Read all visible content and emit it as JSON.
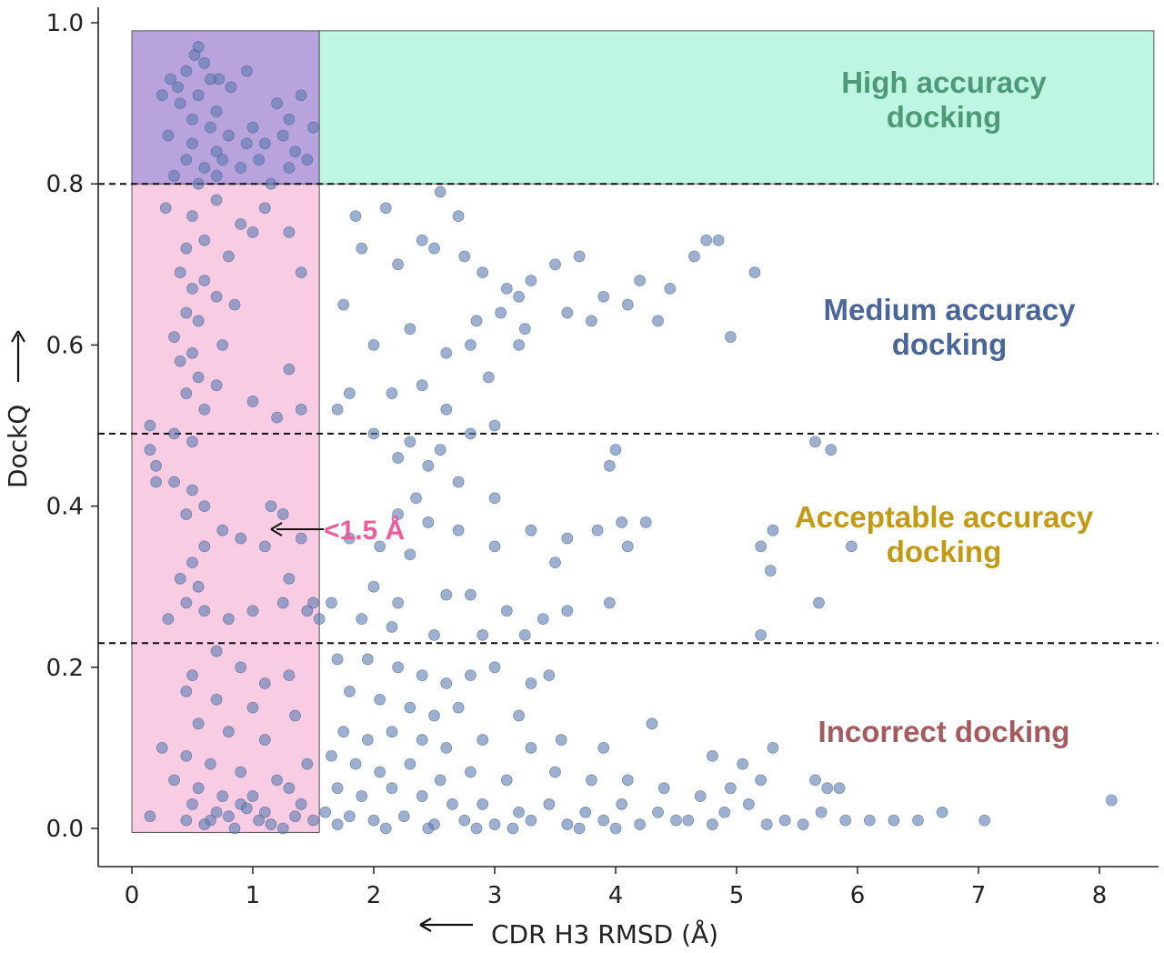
{
  "chart_data": {
    "type": "scatter",
    "title": "",
    "xlabel": "CDR H3 RMSD (Å)",
    "ylabel": "DockQ",
    "xlim": [
      -0.28,
      8.5
    ],
    "ylim": [
      -0.045,
      1.02
    ],
    "x_ticks": [
      "0",
      "1",
      "2",
      "3",
      "4",
      "5",
      "6",
      "7",
      "8"
    ],
    "y_ticks": [
      "0.0",
      "0.2",
      "0.4",
      "0.6",
      "0.8",
      "1.0"
    ],
    "grid": false,
    "thresholds": [
      0.23,
      0.49,
      0.8
    ],
    "regions": [
      {
        "name": "rmsd-lt-1.5",
        "x": [
          0,
          1.55
        ],
        "y": [
          -0.005,
          0.8
        ],
        "color": "#f8cde4"
      },
      {
        "name": "overlap",
        "x": [
          0,
          1.55
        ],
        "y": [
          0.8,
          0.99
        ],
        "color": "#b9a3dd"
      },
      {
        "name": "high-accuracy",
        "x": [
          1.55,
          8.45
        ],
        "y": [
          0.8,
          0.99
        ],
        "color": "#bdf7e4"
      }
    ],
    "annotations": [
      {
        "text": "High accuracy",
        "text2": "docking",
        "color": "#4e9a78"
      },
      {
        "text": "Medium accuracy",
        "text2": "docking",
        "color": "#4a6699"
      },
      {
        "text": "Acceptable accuracy",
        "text2": "docking",
        "color": "#c39a14"
      },
      {
        "text": "Incorrect docking",
        "text2": "",
        "color": "#a55a60"
      },
      {
        "text": "<1.5 Å",
        "text2": "",
        "color": "#ec5c9a"
      }
    ],
    "point_color": "#5b7bb0",
    "points": [
      [
        0.32,
        0.93
      ],
      [
        0.38,
        0.92
      ],
      [
        0.45,
        0.94
      ],
      [
        0.52,
        0.96
      ],
      [
        0.55,
        0.97
      ],
      [
        0.6,
        0.95
      ],
      [
        0.72,
        0.93
      ],
      [
        0.82,
        0.92
      ],
      [
        0.25,
        0.91
      ],
      [
        0.4,
        0.9
      ],
      [
        0.55,
        0.91
      ],
      [
        0.7,
        0.89
      ],
      [
        0.95,
        0.94
      ],
      [
        1.2,
        0.9
      ],
      [
        1.4,
        0.91
      ],
      [
        0.3,
        0.86
      ],
      [
        0.5,
        0.85
      ],
      [
        0.65,
        0.87
      ],
      [
        0.8,
        0.86
      ],
      [
        1.0,
        0.87
      ],
      [
        1.1,
        0.85
      ],
      [
        1.25,
        0.86
      ],
      [
        1.35,
        0.84
      ],
      [
        1.5,
        0.87
      ],
      [
        0.45,
        0.83
      ],
      [
        0.6,
        0.82
      ],
      [
        0.75,
        0.83
      ],
      [
        0.9,
        0.82
      ],
      [
        1.05,
        0.83
      ],
      [
        1.3,
        0.82
      ],
      [
        1.45,
        0.83
      ],
      [
        0.35,
        0.81
      ],
      [
        0.55,
        0.8
      ],
      [
        0.7,
        0.81
      ],
      [
        1.15,
        0.8
      ],
      [
        0.65,
        0.93
      ],
      [
        0.5,
        0.88
      ],
      [
        1.3,
        0.88
      ],
      [
        0.95,
        0.85
      ],
      [
        0.7,
        0.84
      ],
      [
        0.28,
        0.77
      ],
      [
        0.5,
        0.76
      ],
      [
        0.7,
        0.78
      ],
      [
        0.9,
        0.75
      ],
      [
        1.1,
        0.77
      ],
      [
        1.3,
        0.74
      ],
      [
        0.45,
        0.72
      ],
      [
        0.6,
        0.73
      ],
      [
        0.8,
        0.71
      ],
      [
        1.0,
        0.74
      ],
      [
        0.4,
        0.69
      ],
      [
        0.5,
        0.67
      ],
      [
        0.6,
        0.68
      ],
      [
        0.7,
        0.66
      ],
      [
        0.45,
        0.64
      ],
      [
        0.55,
        0.63
      ],
      [
        0.35,
        0.61
      ],
      [
        0.85,
        0.65
      ],
      [
        1.4,
        0.69
      ],
      [
        0.75,
        0.6
      ],
      [
        0.4,
        0.58
      ],
      [
        0.5,
        0.59
      ],
      [
        0.55,
        0.56
      ],
      [
        0.45,
        0.54
      ],
      [
        0.7,
        0.55
      ],
      [
        1.0,
        0.53
      ],
      [
        1.3,
        0.57
      ],
      [
        0.6,
        0.52
      ],
      [
        1.2,
        0.51
      ],
      [
        1.4,
        0.52
      ],
      [
        0.15,
        0.5
      ],
      [
        0.15,
        0.47
      ],
      [
        0.2,
        0.45
      ],
      [
        0.35,
        0.49
      ],
      [
        0.5,
        0.48
      ],
      [
        0.2,
        0.43
      ],
      [
        0.35,
        0.43
      ],
      [
        0.5,
        0.42
      ],
      [
        0.6,
        0.4
      ],
      [
        0.45,
        0.39
      ],
      [
        1.15,
        0.4
      ],
      [
        1.25,
        0.39
      ],
      [
        0.75,
        0.37
      ],
      [
        0.9,
        0.36
      ],
      [
        1.1,
        0.35
      ],
      [
        1.4,
        0.36
      ],
      [
        0.6,
        0.35
      ],
      [
        0.5,
        0.33
      ],
      [
        0.4,
        0.31
      ],
      [
        0.55,
        0.3
      ],
      [
        1.3,
        0.31
      ],
      [
        0.45,
        0.28
      ],
      [
        0.6,
        0.27
      ],
      [
        0.8,
        0.26
      ],
      [
        1.0,
        0.27
      ],
      [
        1.25,
        0.28
      ],
      [
        1.45,
        0.27
      ],
      [
        0.3,
        0.26
      ],
      [
        1.5,
        0.28
      ],
      [
        1.55,
        0.26
      ],
      [
        0.7,
        0.22
      ],
      [
        0.5,
        0.19
      ],
      [
        0.9,
        0.2
      ],
      [
        1.1,
        0.18
      ],
      [
        1.3,
        0.19
      ],
      [
        0.45,
        0.17
      ],
      [
        0.7,
        0.16
      ],
      [
        1.0,
        0.15
      ],
      [
        1.35,
        0.14
      ],
      [
        0.55,
        0.13
      ],
      [
        0.8,
        0.12
      ],
      [
        1.1,
        0.11
      ],
      [
        0.25,
        0.1
      ],
      [
        0.45,
        0.09
      ],
      [
        0.65,
        0.08
      ],
      [
        0.9,
        0.07
      ],
      [
        1.2,
        0.06
      ],
      [
        1.45,
        0.08
      ],
      [
        0.35,
        0.06
      ],
      [
        0.55,
        0.05
      ],
      [
        0.75,
        0.04
      ],
      [
        1.0,
        0.04
      ],
      [
        1.3,
        0.05
      ],
      [
        0.5,
        0.03
      ],
      [
        0.7,
        0.02
      ],
      [
        0.9,
        0.03
      ],
      [
        1.1,
        0.02
      ],
      [
        1.4,
        0.03
      ],
      [
        0.45,
        0.01
      ],
      [
        0.65,
        0.01
      ],
      [
        0.85,
        0.0
      ],
      [
        1.05,
        0.01
      ],
      [
        1.25,
        0.0
      ],
      [
        1.5,
        0.01
      ],
      [
        0.6,
        0.005
      ],
      [
        1.15,
        0.005
      ],
      [
        0.8,
        0.015
      ],
      [
        1.35,
        0.015
      ],
      [
        0.15,
        0.015
      ],
      [
        0.95,
        0.025
      ],
      [
        1.85,
        0.76
      ],
      [
        2.1,
        0.77
      ],
      [
        2.4,
        0.73
      ],
      [
        2.55,
        0.79
      ],
      [
        2.7,
        0.76
      ],
      [
        1.9,
        0.72
      ],
      [
        2.2,
        0.7
      ],
      [
        2.5,
        0.72
      ],
      [
        2.75,
        0.71
      ],
      [
        2.9,
        0.69
      ],
      [
        3.1,
        0.67
      ],
      [
        3.3,
        0.68
      ],
      [
        3.5,
        0.7
      ],
      [
        3.7,
        0.71
      ],
      [
        3.9,
        0.66
      ],
      [
        4.2,
        0.68
      ],
      [
        4.45,
        0.67
      ],
      [
        4.65,
        0.71
      ],
      [
        4.75,
        0.73
      ],
      [
        4.85,
        0.73
      ],
      [
        5.15,
        0.69
      ],
      [
        4.95,
        0.61
      ],
      [
        2.85,
        0.63
      ],
      [
        3.05,
        0.64
      ],
      [
        3.25,
        0.62
      ],
      [
        3.6,
        0.64
      ],
      [
        3.8,
        0.63
      ],
      [
        4.1,
        0.65
      ],
      [
        4.35,
        0.63
      ],
      [
        1.75,
        0.65
      ],
      [
        2.0,
        0.6
      ],
      [
        2.3,
        0.62
      ],
      [
        2.6,
        0.59
      ],
      [
        2.8,
        0.6
      ],
      [
        3.2,
        0.6
      ],
      [
        1.8,
        0.54
      ],
      [
        2.15,
        0.54
      ],
      [
        2.4,
        0.55
      ],
      [
        2.6,
        0.52
      ],
      [
        1.7,
        0.52
      ],
      [
        2.0,
        0.49
      ],
      [
        2.3,
        0.48
      ],
      [
        2.55,
        0.47
      ],
      [
        2.8,
        0.49
      ],
      [
        3.0,
        0.5
      ],
      [
        2.2,
        0.46
      ],
      [
        2.45,
        0.45
      ],
      [
        2.7,
        0.43
      ],
      [
        3.0,
        0.41
      ],
      [
        2.35,
        0.41
      ],
      [
        3.3,
        0.37
      ],
      [
        3.6,
        0.36
      ],
      [
        3.85,
        0.37
      ],
      [
        4.05,
        0.38
      ],
      [
        4.25,
        0.38
      ],
      [
        2.2,
        0.39
      ],
      [
        2.45,
        0.38
      ],
      [
        2.7,
        0.37
      ],
      [
        3.95,
        0.45
      ],
      [
        4.0,
        0.47
      ],
      [
        1.8,
        0.36
      ],
      [
        2.05,
        0.35
      ],
      [
        2.3,
        0.34
      ],
      [
        3.0,
        0.35
      ],
      [
        3.5,
        0.33
      ],
      [
        4.1,
        0.35
      ],
      [
        2.0,
        0.3
      ],
      [
        2.2,
        0.28
      ],
      [
        2.6,
        0.29
      ],
      [
        2.8,
        0.29
      ],
      [
        3.1,
        0.27
      ],
      [
        3.4,
        0.26
      ],
      [
        3.6,
        0.27
      ],
      [
        3.95,
        0.28
      ],
      [
        1.65,
        0.28
      ],
      [
        1.9,
        0.26
      ],
      [
        2.15,
        0.25
      ],
      [
        2.5,
        0.24
      ],
      [
        2.9,
        0.24
      ],
      [
        3.25,
        0.24
      ],
      [
        1.7,
        0.21
      ],
      [
        1.95,
        0.21
      ],
      [
        2.2,
        0.2
      ],
      [
        2.4,
        0.19
      ],
      [
        2.6,
        0.18
      ],
      [
        2.8,
        0.19
      ],
      [
        3.0,
        0.2
      ],
      [
        3.3,
        0.18
      ],
      [
        3.45,
        0.19
      ],
      [
        1.8,
        0.17
      ],
      [
        2.05,
        0.16
      ],
      [
        2.3,
        0.15
      ],
      [
        2.5,
        0.14
      ],
      [
        2.7,
        0.15
      ],
      [
        3.2,
        0.14
      ],
      [
        1.75,
        0.12
      ],
      [
        1.95,
        0.11
      ],
      [
        2.15,
        0.12
      ],
      [
        2.4,
        0.11
      ],
      [
        2.6,
        0.1
      ],
      [
        2.9,
        0.11
      ],
      [
        3.3,
        0.1
      ],
      [
        3.55,
        0.11
      ],
      [
        3.9,
        0.1
      ],
      [
        4.3,
        0.13
      ],
      [
        4.8,
        0.09
      ],
      [
        5.05,
        0.08
      ],
      [
        5.3,
        0.1
      ],
      [
        1.65,
        0.09
      ],
      [
        1.85,
        0.08
      ],
      [
        2.05,
        0.07
      ],
      [
        2.3,
        0.08
      ],
      [
        2.55,
        0.06
      ],
      [
        2.8,
        0.07
      ],
      [
        3.1,
        0.06
      ],
      [
        3.5,
        0.07
      ],
      [
        3.8,
        0.06
      ],
      [
        4.1,
        0.06
      ],
      [
        4.4,
        0.05
      ],
      [
        4.7,
        0.04
      ],
      [
        4.95,
        0.05
      ],
      [
        5.2,
        0.06
      ],
      [
        5.65,
        0.06
      ],
      [
        5.75,
        0.05
      ],
      [
        5.85,
        0.05
      ],
      [
        1.7,
        0.05
      ],
      [
        1.9,
        0.04
      ],
      [
        2.15,
        0.05
      ],
      [
        2.4,
        0.04
      ],
      [
        2.65,
        0.03
      ],
      [
        2.9,
        0.03
      ],
      [
        3.2,
        0.02
      ],
      [
        3.45,
        0.03
      ],
      [
        3.75,
        0.02
      ],
      [
        4.05,
        0.03
      ],
      [
        4.35,
        0.02
      ],
      [
        4.6,
        0.01
      ],
      [
        4.9,
        0.02
      ],
      [
        5.1,
        0.03
      ],
      [
        5.4,
        0.01
      ],
      [
        5.7,
        0.02
      ],
      [
        6.1,
        0.01
      ],
      [
        6.3,
        0.01
      ],
      [
        6.7,
        0.02
      ],
      [
        8.1,
        0.035
      ],
      [
        1.6,
        0.02
      ],
      [
        1.8,
        0.015
      ],
      [
        2.0,
        0.01
      ],
      [
        2.25,
        0.015
      ],
      [
        2.5,
        0.005
      ],
      [
        2.75,
        0.01
      ],
      [
        3.0,
        0.005
      ],
      [
        3.3,
        0.01
      ],
      [
        3.6,
        0.005
      ],
      [
        3.9,
        0.01
      ],
      [
        4.2,
        0.005
      ],
      [
        4.5,
        0.01
      ],
      [
        4.8,
        0.005
      ],
      [
        5.25,
        0.005
      ],
      [
        5.55,
        0.005
      ],
      [
        5.9,
        0.01
      ],
      [
        6.5,
        0.01
      ],
      [
        7.05,
        0.01
      ],
      [
        1.7,
        0.005
      ],
      [
        2.1,
        0.0
      ],
      [
        2.45,
        0.0
      ],
      [
        2.85,
        0.0
      ],
      [
        3.15,
        0.0
      ],
      [
        3.7,
        0.0
      ],
      [
        4.0,
        0.0
      ],
      [
        5.2,
        0.35
      ],
      [
        5.3,
        0.37
      ],
      [
        5.28,
        0.32
      ],
      [
        5.2,
        0.24
      ],
      [
        5.65,
        0.48
      ],
      [
        5.78,
        0.47
      ],
      [
        5.95,
        0.35
      ],
      [
        5.68,
        0.28
      ],
      [
        2.95,
        0.56
      ],
      [
        3.2,
        0.66
      ]
    ]
  }
}
